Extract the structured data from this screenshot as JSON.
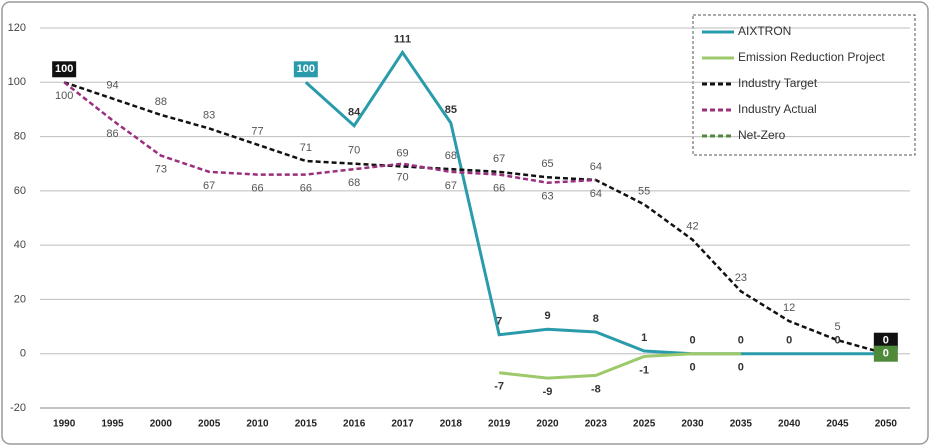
{
  "chart_data": {
    "type": "line",
    "categories": [
      "1990",
      "1995",
      "2000",
      "2005",
      "2010",
      "2015",
      "2016",
      "2017",
      "2018",
      "2019",
      "2020",
      "2023",
      "2025",
      "2030",
      "2035",
      "2040",
      "2045",
      "2050"
    ],
    "series": [
      {
        "name": "AIXTRON",
        "color": "#2a9bab",
        "dashed": false,
        "values": [
          null,
          null,
          null,
          null,
          null,
          100,
          84,
          111,
          85,
          7,
          9,
          8,
          1,
          0,
          0,
          0,
          0,
          0
        ]
      },
      {
        "name": "Emission Reduction Project",
        "color": "#9dc96b",
        "dashed": false,
        "values": [
          null,
          null,
          null,
          null,
          null,
          null,
          null,
          null,
          null,
          -7,
          -9,
          -8,
          -1,
          0,
          0,
          null,
          null,
          null
        ]
      },
      {
        "name": "Industry Target",
        "color": "#111111",
        "dashed": true,
        "values": [
          100,
          94,
          88,
          83,
          77,
          71,
          70,
          69,
          68,
          67,
          65,
          64,
          55,
          42,
          23,
          12,
          5,
          0
        ]
      },
      {
        "name": "Industry Actual",
        "color": "#9b2f7e",
        "dashed": true,
        "values": [
          100,
          86,
          73,
          67,
          66,
          66,
          68,
          70,
          67,
          66,
          63,
          64,
          null,
          null,
          null,
          null,
          null,
          null
        ]
      },
      {
        "name": "Net-Zero",
        "color": "#4f8a3a",
        "dashed": true,
        "values": [
          null,
          null,
          null,
          null,
          null,
          null,
          null,
          null,
          null,
          null,
          null,
          null,
          null,
          null,
          null,
          null,
          null,
          0
        ]
      }
    ],
    "ylim": [
      -20,
      120
    ],
    "yticks": [
      -20,
      0,
      20,
      40,
      60,
      80,
      100,
      120
    ],
    "grid": true,
    "legend": "top-right"
  }
}
